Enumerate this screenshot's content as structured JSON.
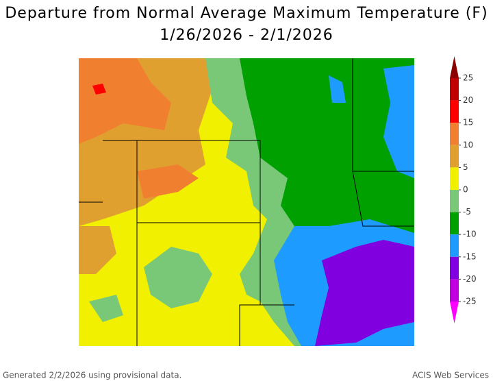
{
  "title": "Departure from Normal Average Maximum Temperature (F)",
  "subtitle": "1/26/2026 - 2/1/2026",
  "colorbar": {
    "ticks": [
      25,
      20,
      15,
      10,
      5,
      0,
      -5,
      -10,
      -15,
      -20,
      -25
    ],
    "colors": [
      "#8b0000",
      "#c00000",
      "#ff0000",
      "#f08030",
      "#e0a030",
      "#f0f000",
      "#78c878",
      "#00a000",
      "#1e9bff",
      "#8000e0",
      "#c000e0",
      "#ff00ff"
    ]
  },
  "footer": {
    "left": "Generated 2/2/2026 using provisional data.",
    "right": "ACIS Web Services"
  }
}
